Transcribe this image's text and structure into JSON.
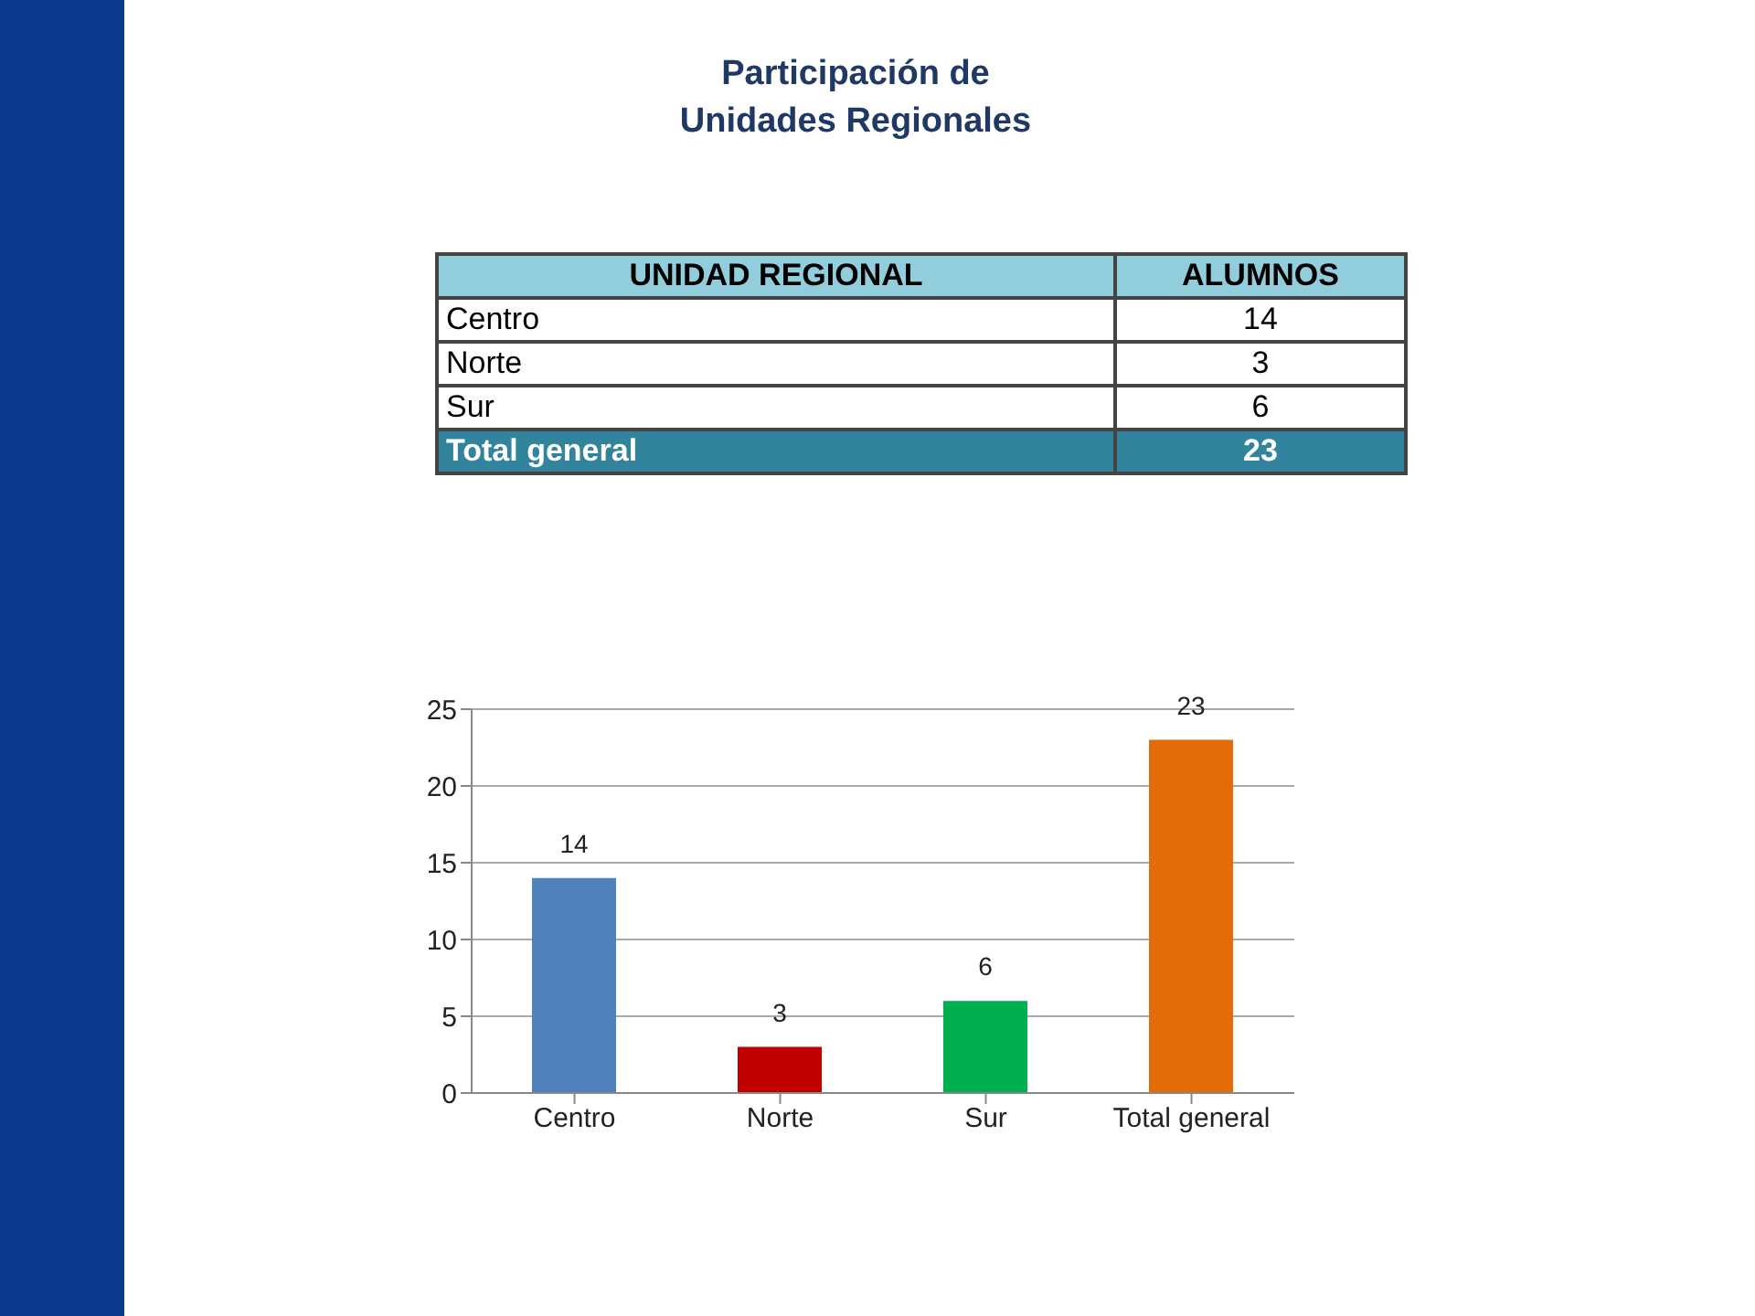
{
  "chart_data": [
    {
      "type": "other",
      "title": "Participación de\nUnidades Regionales",
      "annotations": [
        "UNIDAD REGIONAL",
        "ALUMNOS"
      ],
      "categories": [
        "Centro",
        "Norte",
        "Sur",
        "Total general"
      ],
      "values": [
        14,
        3,
        6,
        23
      ],
      "data_labels": true
    },
    {
      "type": "bar",
      "categories": [
        "Centro",
        "Norte",
        "Sur",
        "Total general"
      ],
      "values": [
        14,
        3,
        6,
        23
      ],
      "colors": [
        "#4f81bd",
        "#c00000",
        "#00b050",
        "#e36c09"
      ],
      "ylim": [
        0,
        25
      ],
      "yticks": [
        0,
        5,
        10,
        15,
        20,
        25
      ],
      "grid": "y",
      "data_labels": true
    }
  ]
}
